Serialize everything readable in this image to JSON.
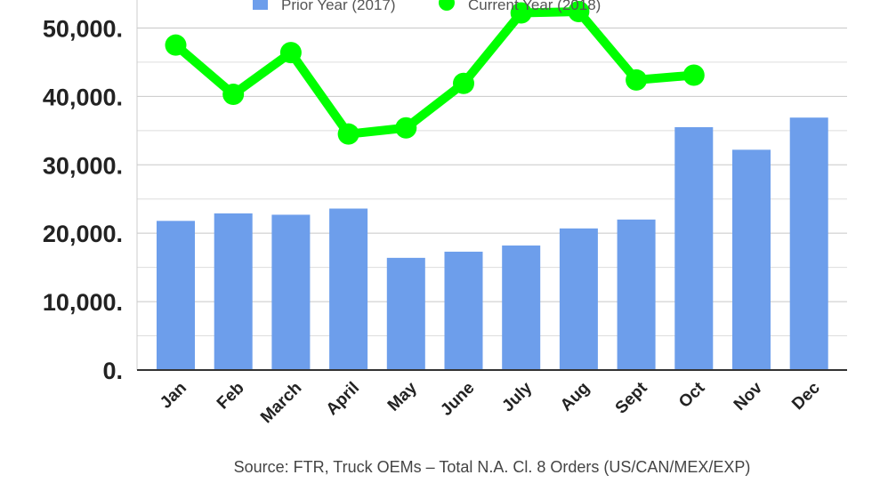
{
  "chart_data": {
    "type": "bar",
    "title": "",
    "xlabel": "",
    "ylabel": "",
    "categories": [
      "Jan",
      "Feb",
      "March",
      "April",
      "May",
      "June",
      "July",
      "Aug",
      "Sept",
      "Oct",
      "Nov",
      "Dec"
    ],
    "series": [
      {
        "name": "Prior Year (2017)",
        "type": "bar",
        "color": "#6d9eeb",
        "values": [
          21800,
          22900,
          22700,
          23600,
          16400,
          17300,
          18200,
          20700,
          22000,
          35500,
          32200,
          36900
        ]
      },
      {
        "name": "Current Year (2018)",
        "type": "line",
        "color": "#00ff00",
        "values": [
          47500,
          40300,
          46400,
          34500,
          35400,
          41900,
          52200,
          52400,
          42400,
          43100,
          null,
          null
        ]
      }
    ],
    "ylim": [
      0,
      55000
    ],
    "yticks": [
      0,
      10000,
      20000,
      30000,
      40000,
      50000
    ],
    "ytick_labels": [
      "0.",
      "10,000.",
      "20,000.",
      "30,000.",
      "40,000.",
      "50,000."
    ],
    "grid": true,
    "legend_position": "top"
  },
  "source_note": "Source: FTR, Truck OEMs – Total N.A. Cl. 8 Orders (US/CAN/MEX/EXP)"
}
